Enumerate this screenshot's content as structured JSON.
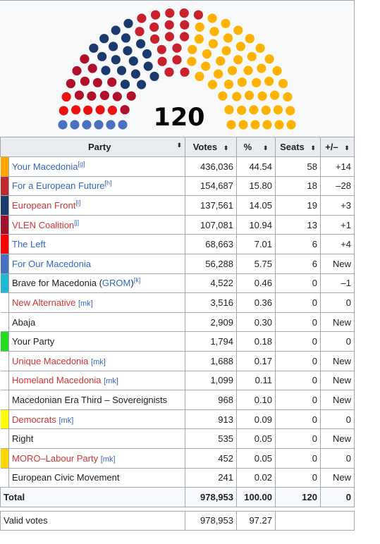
{
  "total_seats": "120",
  "colors": {
    "your_macedonia": "#FFB300",
    "european_future": "#C0392B",
    "european_front": "#1A3A6E",
    "vlen": "#B0102A",
    "the_left": "#FF0000",
    "for_our_macedonia": "#4A70C0"
  },
  "seat_groups": [
    {
      "party": "For Our Macedonia",
      "seats": 6,
      "color": "#4A70C0"
    },
    {
      "party": "The Left",
      "seats": 6,
      "color": "#EE1111"
    },
    {
      "party": "VLEN Coalition",
      "seats": 13,
      "color": "#B0102A"
    },
    {
      "party": "European Front",
      "seats": 19,
      "color": "#1A3A6E"
    },
    {
      "party": "For a European Future",
      "seats": 18,
      "color": "#C8202C"
    },
    {
      "party": "Your Macedonia",
      "seats": 58,
      "color": "#FFB300"
    }
  ],
  "headers": {
    "party": "Party",
    "votes": "Votes",
    "pct": "%",
    "seats": "Seats",
    "change": "+/–",
    "sort_icon": "⬍"
  },
  "rows": [
    {
      "swatch": "#FFA500",
      "name": "Your Macedonia",
      "sup": "[g]",
      "link": "blue",
      "mk": "",
      "votes": "436,036",
      "pct": "44.54",
      "seats": "58",
      "change": "+14"
    },
    {
      "swatch": "#C0282D",
      "name": "For a European Future",
      "sup": "[h]",
      "link": "blue",
      "mk": "",
      "votes": "154,687",
      "pct": "15.80",
      "seats": "18",
      "change": "–28"
    },
    {
      "swatch": "#1A3A6E",
      "name": "European Front",
      "sup": "[i]",
      "link": "red",
      "mk": "",
      "votes": "137,561",
      "pct": "14.05",
      "seats": "19",
      "change": "+3"
    },
    {
      "swatch": "#A0102A",
      "name": "VLEN Coalition",
      "sup": "[j]",
      "link": "red",
      "mk": "",
      "votes": "107,081",
      "pct": "10.94",
      "seats": "13",
      "change": "+1"
    },
    {
      "swatch": "#FF0000",
      "name": "The Left",
      "sup": "",
      "link": "blue",
      "mk": "",
      "votes": "68,663",
      "pct": "7.01",
      "seats": "6",
      "change": "+4"
    },
    {
      "swatch": "#4A70C0",
      "name": "For Our Macedonia",
      "sup": "",
      "link": "blue",
      "mk": "",
      "votes": "56,288",
      "pct": "5.75",
      "seats": "6",
      "change": "New"
    },
    {
      "swatch": "#1FB8D0",
      "name": "Brave for Macedonia (",
      "name2": "GROM",
      "name3": ")",
      "sup": "[k]",
      "link": "plain",
      "mk": "",
      "votes": "4,522",
      "pct": "0.46",
      "seats": "0",
      "change": "–1"
    },
    {
      "swatch": "",
      "name": "New Alternative",
      "sup": "",
      "link": "red",
      "mk": "[mk]",
      "votes": "3,516",
      "pct": "0.36",
      "seats": "0",
      "change": "0"
    },
    {
      "swatch": "",
      "name": "Abaja",
      "sup": "",
      "link": "plain",
      "mk": "",
      "votes": "2,909",
      "pct": "0.30",
      "seats": "0",
      "change": "New"
    },
    {
      "swatch": "#22DD22",
      "name": "Your Party",
      "sup": "",
      "link": "plain",
      "mk": "",
      "votes": "1,794",
      "pct": "0.18",
      "seats": "0",
      "change": "0"
    },
    {
      "swatch": "",
      "name": "Unique Macedonia",
      "sup": "",
      "link": "red",
      "mk": "[mk]",
      "votes": "1,688",
      "pct": "0.17",
      "seats": "0",
      "change": "New"
    },
    {
      "swatch": "",
      "name": "Homeland Macedonia",
      "sup": "",
      "link": "red",
      "mk": "[mk]",
      "votes": "1,099",
      "pct": "0.11",
      "seats": "0",
      "change": "New"
    },
    {
      "swatch": "",
      "name": "Macedonian Era Third – Sovereignists",
      "sup": "",
      "link": "plain",
      "mk": "",
      "votes": "968",
      "pct": "0.10",
      "seats": "0",
      "change": "New"
    },
    {
      "swatch": "#FFFF00",
      "name": "Democrats",
      "sup": "",
      "link": "red",
      "mk": "[mk]",
      "votes": "913",
      "pct": "0.09",
      "seats": "0",
      "change": "0"
    },
    {
      "swatch": "",
      "name": "Right",
      "sup": "",
      "link": "plain",
      "mk": "",
      "votes": "535",
      "pct": "0.05",
      "seats": "0",
      "change": "New"
    },
    {
      "swatch": "#FFD700",
      "name": "MORO–Labour Party",
      "sup": "",
      "link": "red",
      "mk": "[mk]",
      "votes": "452",
      "pct": "0.05",
      "seats": "0",
      "change": "0"
    },
    {
      "swatch": "",
      "name": "European Civic Movement",
      "sup": "",
      "link": "plain",
      "mk": "",
      "votes": "241",
      "pct": "0.02",
      "seats": "0",
      "change": "New"
    }
  ],
  "total": {
    "label": "Total",
    "votes": "978,953",
    "pct": "100.00",
    "seats": "120",
    "change": "0"
  },
  "valid": {
    "label": "Valid votes",
    "votes": "978,953",
    "pct": "97.27"
  }
}
